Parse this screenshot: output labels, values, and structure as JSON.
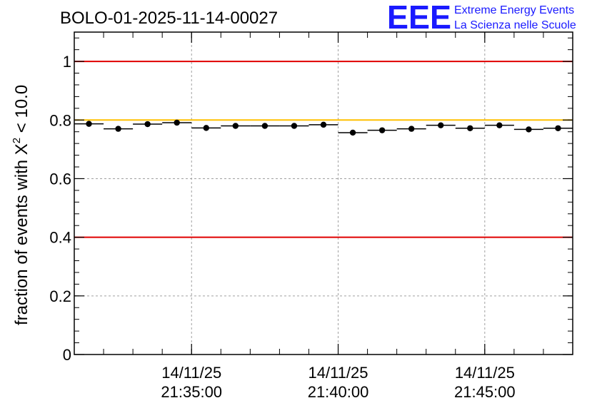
{
  "chart_data": {
    "type": "scatter",
    "title": "BOLO-01-2025-11-14-00027",
    "ylabel_prefix": "fraction of events with ",
    "ylabel_symbol": "Χ",
    "ylabel_sup": "2",
    "ylabel_suffix": " < 10.0",
    "xlabel": "",
    "ylim": [
      0,
      1.1
    ],
    "grid": true,
    "x_minutes_range": [
      -4.0,
      13.0
    ],
    "y_ticks": [
      0,
      0.2,
      0.4,
      0.6,
      0.8,
      1
    ],
    "y_tick_labels": [
      "0",
      "0.2",
      "0.4",
      "0.6",
      "0.8",
      "1"
    ],
    "x_ticks": [
      {
        "minute": 0,
        "date": "14/11/25",
        "time": "21:35:00"
      },
      {
        "minute": 5,
        "date": "14/11/25",
        "time": "21:40:00"
      },
      {
        "minute": 10,
        "date": "14/11/25",
        "time": "21:45:00"
      }
    ],
    "bin_width_minutes": 1.0,
    "x": [
      -3.5,
      -2.5,
      -1.5,
      -0.5,
      0.5,
      1.5,
      2.5,
      3.5,
      4.5,
      5.5,
      6.5,
      7.5,
      8.5,
      9.5,
      10.5,
      11.5,
      12.5
    ],
    "values": [
      0.787,
      0.77,
      0.786,
      0.791,
      0.773,
      0.78,
      0.78,
      0.78,
      0.784,
      0.757,
      0.765,
      0.77,
      0.782,
      0.772,
      0.782,
      0.768,
      0.772
    ],
    "reference_lines": [
      {
        "value": 1.0,
        "color": "#e00000"
      },
      {
        "value": 0.8,
        "color": "#ffc000"
      },
      {
        "value": 0.4,
        "color": "#e00000"
      }
    ],
    "marker_color": "#000000"
  },
  "logo": {
    "mark": "EEE",
    "line1": "Extreme Energy Events",
    "line2": "La Scienza nelle Scuole",
    "color": "#1a1aff"
  }
}
